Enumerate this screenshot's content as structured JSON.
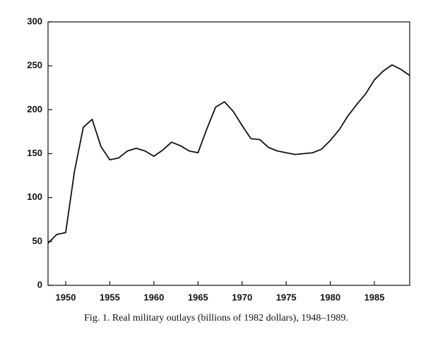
{
  "chart_data": {
    "type": "line",
    "caption": "Fig. 1.   Real military outlays (billions of 1982 dollars), 1948–1989.",
    "x": [
      1948,
      1949,
      1950,
      1951,
      1952,
      1953,
      1954,
      1955,
      1956,
      1957,
      1958,
      1959,
      1960,
      1961,
      1962,
      1963,
      1964,
      1965,
      1966,
      1967,
      1968,
      1969,
      1970,
      1971,
      1972,
      1973,
      1974,
      1975,
      1976,
      1977,
      1978,
      1979,
      1980,
      1981,
      1982,
      1983,
      1984,
      1985,
      1986,
      1987,
      1988,
      1989
    ],
    "series": [
      {
        "color": "#111111",
        "values": [
          48,
          58,
          60,
          130,
          180,
          189,
          158,
          143,
          145,
          153,
          156,
          153,
          147,
          154,
          163,
          159,
          153,
          151,
          178,
          203,
          209,
          198,
          182,
          167,
          166,
          157,
          153,
          151,
          149,
          150,
          151,
          155,
          165,
          177,
          193,
          206,
          218,
          234,
          244,
          251,
          246,
          239
        ]
      }
    ],
    "xlim": [
      1948,
      1989
    ],
    "xticks": [
      1950,
      1955,
      1960,
      1965,
      1970,
      1975,
      1980,
      1985
    ],
    "ylim": [
      0,
      300
    ],
    "yticks": [
      0,
      50,
      100,
      150,
      200,
      250,
      300
    ]
  }
}
